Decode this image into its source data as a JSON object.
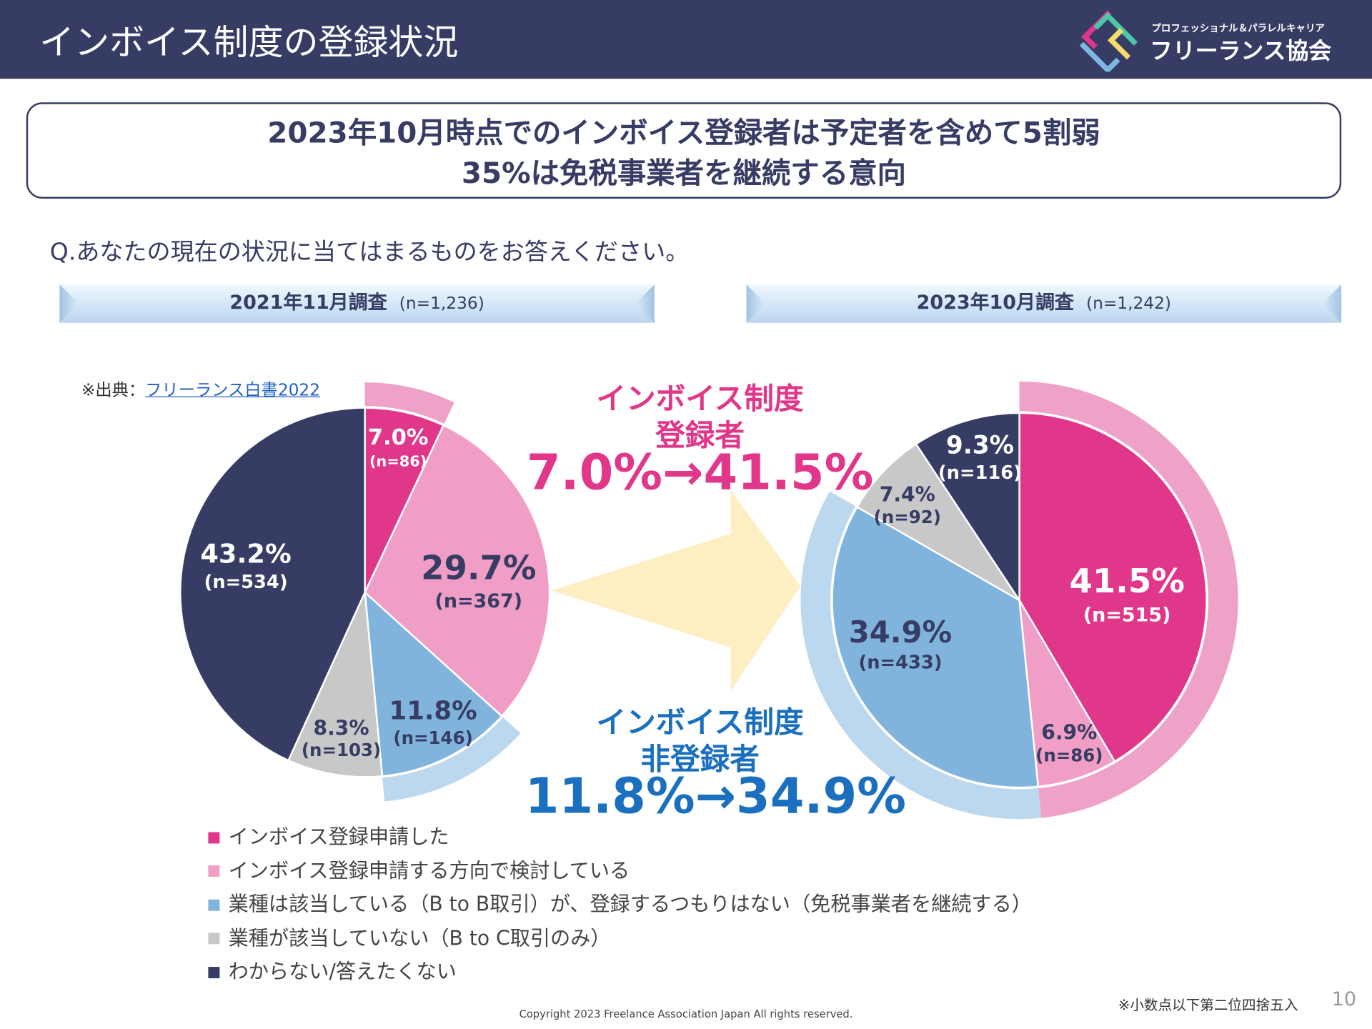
{
  "header": {
    "title": "インボイス制度の登録状況",
    "logo": {
      "sub": "プロフェッショナル＆パラレルキャリア",
      "name": "フリーランス協会"
    }
  },
  "headline": {
    "line1": "2023年10月時点でのインボイス登録者は予定者を含めて5割弱",
    "line2": "35%は免税事業者を継続する意向"
  },
  "question": "Q.あなたの現在の状況に当てはまるものをお答えください。",
  "source": {
    "prefix": "※出典：",
    "link": "フリーランス白書2022"
  },
  "callouts": {
    "registered": {
      "line1": "インボイス制度",
      "line2": "登録者",
      "change": "7.0%→41.5%",
      "color": "#e0378a"
    },
    "unregistered": {
      "line1": "インボイス制度",
      "line2": "非登録者",
      "change": "11.8%→34.9%",
      "color": "#1a6fbf"
    }
  },
  "chart_data": [
    {
      "type": "pie",
      "title": "2021年11月調査",
      "n_total": "(n=1,236)",
      "categories": [
        "インボイス登録申請した",
        "インボイス登録申請する方向で検討している",
        "業種は該当している（B to B取引）が、登録するつもりはない（免税事業者を継続する）",
        "業種が該当していない（B to C取引のみ）",
        "わからない/答えたくない"
      ],
      "values": [
        7.0,
        29.7,
        11.8,
        8.3,
        43.2
      ],
      "labels": [
        "7.0%",
        "29.7%",
        "11.8%",
        "8.3%",
        "43.2%"
      ],
      "n": [
        "(n=86)",
        "(n=367)",
        "(n=146)",
        "(n=103)",
        "(n=534)"
      ],
      "colors": [
        "#e0378a",
        "#f09ec6",
        "#80b4dc",
        "#c8c8c8",
        "#363c63"
      ]
    },
    {
      "type": "pie",
      "title": "2023年10月調査",
      "n_total": "(n=1,242)",
      "categories": [
        "インボイス登録申請した",
        "インボイス登録申請する方向で検討している",
        "業種は該当している（B to B取引）が、登録するつもりはない（免税事業者を継続する）",
        "業種が該当していない（B to C取引のみ）",
        "わからない/答えたくない"
      ],
      "values": [
        41.5,
        6.9,
        34.9,
        7.4,
        9.3
      ],
      "labels": [
        "41.5%",
        "6.9%",
        "34.9%",
        "7.4%",
        "9.3%"
      ],
      "n": [
        "(n=515)",
        "(n=86)",
        "(n=433)",
        "(n=92)",
        "(n=116)"
      ],
      "colors": [
        "#e0378a",
        "#f09ec6",
        "#80b4dc",
        "#c8c8c8",
        "#363c63"
      ]
    }
  ],
  "legend": [
    {
      "label": "インボイス登録申請した",
      "color": "#e0378a"
    },
    {
      "label": "インボイス登録申請する方向で検討している",
      "color": "#f09ec6"
    },
    {
      "label": "業種は該当している（B to B取引）が、登録するつもりはない（免税事業者を継続する）",
      "color": "#80b4dc"
    },
    {
      "label": "業種が該当していない（B to C取引のみ）",
      "color": "#c8c8c8"
    },
    {
      "label": "わからない/答えたくない",
      "color": "#363c63"
    }
  ],
  "footer": {
    "note": "※小数点以下第二位四捨五入",
    "page": "10",
    "copyright": "Copyright 2023 Freelance Association Japan  All rights reserved."
  }
}
